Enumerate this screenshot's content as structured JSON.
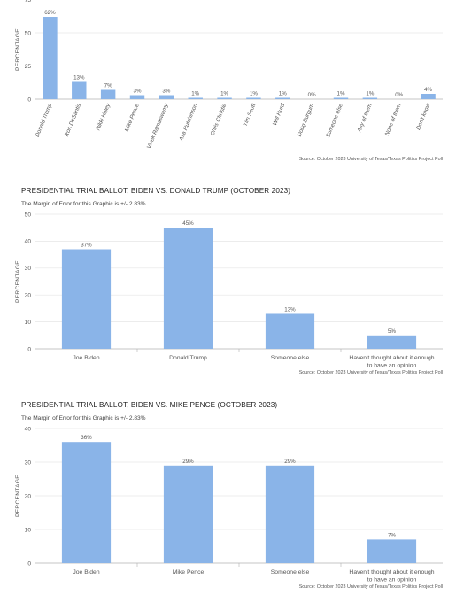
{
  "colors": {
    "bar": "#8ab4e8",
    "grid": "#e6e6e6",
    "axis": "#b0b0b0",
    "text": "#555555"
  },
  "charts": [
    {
      "source": "Source: October 2023 University of Texas/Texas Politics Project Poll",
      "chart_data": {
        "type": "bar",
        "categories": [
          "Donald Trump",
          "Ron DeSantis",
          "Nikki Haley",
          "Mike Pence",
          "Vivek Ramaswamy",
          "Asa Hutchinson",
          "Chris Christie",
          "Tim Scott",
          "Will Hurd",
          "Doug Burgum",
          "Someone else",
          "Any of them",
          "None of them",
          "Don't know"
        ],
        "values": [
          62,
          13,
          7,
          3,
          3,
          1,
          1,
          1,
          1,
          0,
          1,
          1,
          0,
          4
        ],
        "data_labels": [
          "62%",
          "13%",
          "7%",
          "3%",
          "3%",
          "1%",
          "1%",
          "1%",
          "1%",
          "0%",
          "1%",
          "1%",
          "0%",
          "4%"
        ],
        "ylabel": "PERCENTAGE",
        "yticks": [
          0,
          25,
          50,
          75
        ],
        "ylim": [
          0,
          75
        ],
        "grid": true
      }
    },
    {
      "title": "PRESIDENTIAL TRIAL BALLOT, BIDEN VS. DONALD TRUMP (OCTOBER 2023)",
      "subtitle": "The Margin of Error for this Graphic is +/- 2.83%",
      "source": "Source: October 2023 University of Texas/Texas Politics Project Poll",
      "chart_data": {
        "type": "bar",
        "categories": [
          "Joe Biden",
          "Donald Trump",
          "Someone else",
          "Haven't thought about it enough to have an opinion"
        ],
        "category_lines": [
          [
            "Joe Biden"
          ],
          [
            "Donald Trump"
          ],
          [
            "Someone else"
          ],
          [
            "Haven't thought about it enough",
            "to have an opinion"
          ]
        ],
        "values": [
          37,
          45,
          13,
          5
        ],
        "data_labels": [
          "37%",
          "45%",
          "13%",
          "5%"
        ],
        "ylabel": "PERCENTAGE",
        "yticks": [
          0,
          10,
          20,
          30,
          40,
          50
        ],
        "ylim": [
          0,
          50
        ],
        "grid": true
      }
    },
    {
      "title": "PRESIDENTIAL TRIAL BALLOT, BIDEN VS. MIKE PENCE (OCTOBER 2023)",
      "subtitle": "The Margin of Error for this Graphic is +/- 2.83%",
      "source": "Source: October 2023 University of Texas/Texas Politics Project Poll",
      "chart_data": {
        "type": "bar",
        "categories": [
          "Joe Biden",
          "Mike Pence",
          "Someone else",
          "Haven't thought about it enough to have an opinion"
        ],
        "category_lines": [
          [
            "Joe Biden"
          ],
          [
            "Mike Pence"
          ],
          [
            "Someone else"
          ],
          [
            "Haven't thought about it enough",
            "to have an opinion"
          ]
        ],
        "values": [
          36,
          29,
          29,
          7
        ],
        "data_labels": [
          "36%",
          "29%",
          "29%",
          "7%"
        ],
        "ylabel": "PERCENTAGE",
        "yticks": [
          0,
          10,
          20,
          30,
          40
        ],
        "ylim": [
          0,
          40
        ],
        "grid": true
      }
    }
  ]
}
